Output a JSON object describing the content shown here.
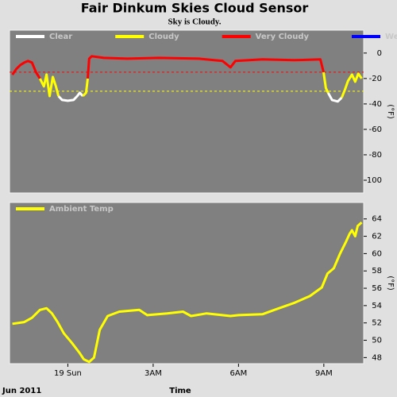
{
  "chart_data": [
    {
      "type": "line",
      "title": "Fair Dinkum Skies Cloud Sensor",
      "subtitle": "Sky is Cloudy.",
      "x": [
        -1.95,
        -1.81,
        -1.67,
        -1.53,
        -1.4,
        -1.26,
        -1.12,
        -0.98,
        -0.84,
        -0.75,
        -0.64,
        -0.53,
        -0.42,
        -0.33,
        -0.2,
        0,
        0.2,
        0.33,
        0.42,
        0.53,
        0.64,
        0.7,
        0.75,
        0.84,
        1.26,
        2.09,
        3.21,
        4.61,
        5.44,
        5.72,
        5.89,
        6.84,
        7.95,
        8.88,
        8.99,
        9.07,
        9.15,
        9.29,
        9.49,
        9.63,
        9.74,
        9.85,
        9.99,
        10.1,
        10.21,
        10.33
      ],
      "series": [
        {
          "name": "Clear",
          "color": "#ffffff",
          "values": [
            null,
            null,
            null,
            null,
            null,
            null,
            null,
            null,
            null,
            null,
            null,
            null,
            null,
            -33.8,
            -36.9,
            -37.5,
            -36.9,
            -33.8,
            -31.2,
            -33.8,
            null,
            null,
            null,
            null,
            null,
            null,
            null,
            null,
            null,
            null,
            null,
            null,
            null,
            null,
            null,
            null,
            -31.2,
            -36.9,
            -38.1,
            -35,
            null,
            null,
            null,
            null,
            null,
            null
          ]
        },
        {
          "name": "Cloudy",
          "color": "#ffff00",
          "values": [
            null,
            null,
            null,
            null,
            null,
            null,
            null,
            -20,
            -26.2,
            -16.9,
            -33.8,
            -18.8,
            -26.2,
            -33.8,
            null,
            null,
            null,
            null,
            null,
            -33.8,
            -31.2,
            -20,
            null,
            null,
            null,
            null,
            null,
            null,
            null,
            null,
            null,
            null,
            null,
            null,
            -15,
            -27.5,
            -31.2,
            null,
            null,
            -35,
            -28.8,
            -21.9,
            -16.9,
            -22.5,
            -16.2,
            -20
          ]
        },
        {
          "name": "Very Cloudy",
          "color": "#ff0000",
          "values": [
            -17,
            -12.5,
            -9.4,
            -7.5,
            -6.2,
            -7.5,
            -15,
            -20,
            null,
            null,
            null,
            null,
            null,
            null,
            null,
            null,
            null,
            null,
            null,
            null,
            null,
            -20,
            -4.4,
            -2.5,
            -3.8,
            -4.4,
            -3.8,
            -4.4,
            -6.2,
            -11.2,
            -6.2,
            -5,
            -5.6,
            -5,
            -15,
            null,
            null,
            null,
            null,
            null,
            null,
            null,
            null,
            null,
            null,
            null
          ]
        },
        {
          "name": "Wet",
          "color": "#0000ff",
          "values": [
            null,
            null,
            null,
            null,
            null,
            null,
            null,
            null,
            null,
            null,
            null,
            null,
            null,
            null,
            null,
            null,
            null,
            null,
            null,
            null,
            null,
            null,
            null,
            null,
            null,
            null,
            null,
            null,
            null,
            null,
            null,
            null,
            null,
            null,
            null,
            null,
            null,
            null,
            null,
            null,
            null,
            null,
            null,
            null,
            null,
            null
          ]
        }
      ],
      "thresholds": [
        {
          "value": -15,
          "color": "#ff0000"
        },
        {
          "value": -30,
          "color": "#ffff00"
        }
      ],
      "xlim": [
        -2.05,
        10.4
      ],
      "ylim": [
        -110,
        18
      ],
      "yticks": [
        0,
        -20,
        -40,
        -60,
        -80,
        -100
      ],
      "y_label": "(°F)"
    },
    {
      "type": "line",
      "x": [
        -1.95,
        -1.53,
        -1.26,
        -0.98,
        -0.75,
        -0.56,
        -0.36,
        -0.14,
        0.14,
        0.42,
        0.56,
        0.75,
        0.92,
        1.12,
        1.4,
        1.81,
        2.51,
        2.79,
        3.49,
        4.05,
        4.33,
        4.88,
        5.72,
        6.0,
        6.84,
        7.26,
        7.95,
        8.51,
        8.93,
        9.13,
        9.35,
        9.57,
        9.77,
        9.91,
        9.99,
        10.1,
        10.19,
        10.33
      ],
      "series": [
        {
          "name": "Ambient Temp",
          "color": "#ffff00",
          "values": [
            51.9,
            52.1,
            52.6,
            53.5,
            53.7,
            53.1,
            52.1,
            50.8,
            49.7,
            48.5,
            47.8,
            47.5,
            48.0,
            51.2,
            52.8,
            53.3,
            53.5,
            52.9,
            53.1,
            53.3,
            52.8,
            53.1,
            52.8,
            52.9,
            53.0,
            53.5,
            54.3,
            55.1,
            56.1,
            57.7,
            58.3,
            60.0,
            61.3,
            62.3,
            62.7,
            62.0,
            63.2,
            63.6
          ]
        }
      ],
      "xlim": [
        -2.05,
        10.4
      ],
      "xticks": [
        {
          "value": 0,
          "label": "19 Sun"
        },
        {
          "value": 3,
          "label": "3AM"
        },
        {
          "value": 6,
          "label": "6AM"
        },
        {
          "value": 9,
          "label": "9AM"
        }
      ],
      "ylim": [
        47.3,
        65.9
      ],
      "yticks": [
        48,
        50,
        52,
        54,
        56,
        58,
        60,
        62,
        64
      ],
      "y_label": "(°F)",
      "x_label": "Time",
      "date_label": "Jun 2011"
    }
  ]
}
